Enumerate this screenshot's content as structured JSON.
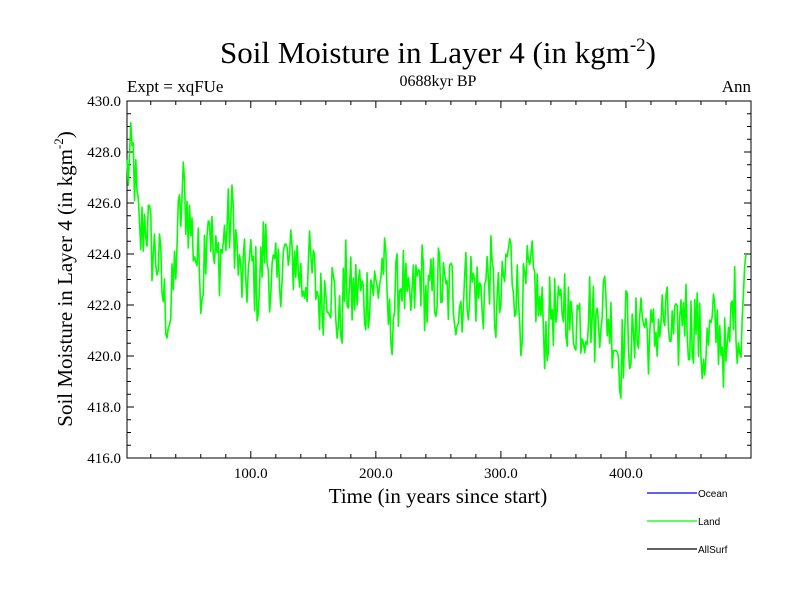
{
  "header": {
    "title_main": "Soil Moisture in Layer 4 (in kgm",
    "title_sup": "-2",
    "title_close": ")",
    "left_label": "Expt = xqFUe",
    "center_label": "0688kyr BP",
    "right_label": "Ann"
  },
  "chart_data": {
    "type": "line",
    "title": "Soil Moisture in Layer 4 (in kgm-2)",
    "xlabel": "Time (in years since start)",
    "ylabel": "Soil Moisture in Layer 4 (in kgm-2)",
    "ylabel_main": "Soil Moisture in Layer 4 (in kgm",
    "ylabel_sup": "-2",
    "ylabel_close": ")",
    "xlim": [
      1,
      500
    ],
    "ylim": [
      416.0,
      430.0
    ],
    "x_ticks": [
      {
        "value": 100,
        "label": "100.0"
      },
      {
        "value": 200,
        "label": "200.0"
      },
      {
        "value": 300,
        "label": "300.0"
      },
      {
        "value": 400,
        "label": "400.0"
      }
    ],
    "y_ticks": [
      {
        "value": 416,
        "label": "416.0"
      },
      {
        "value": 418,
        "label": "418.0"
      },
      {
        "value": 420,
        "label": "420.0"
      },
      {
        "value": 422,
        "label": "422.0"
      },
      {
        "value": 424,
        "label": "424.0"
      },
      {
        "value": 426,
        "label": "426.0"
      },
      {
        "value": 428,
        "label": "428.0"
      },
      {
        "value": 430,
        "label": "430.0"
      }
    ],
    "legend": [
      {
        "name": "Ocean",
        "color": "#0000ff"
      },
      {
        "name": "Land",
        "color": "#00ff00"
      },
      {
        "name": "AllSurf",
        "color": "#000000"
      }
    ],
    "series": [
      {
        "name": "Land",
        "color": "#00ff00",
        "x_start": 1,
        "x_step": 5,
        "values": [
          427.2,
          427.8,
          424.5,
          425.5,
          424.2,
          423.8,
          422.0,
          421.5,
          424.5,
          426.5,
          425.3,
          424.0,
          423.0,
          426.0,
          423.5,
          424.0,
          425.0,
          425.5,
          423.0,
          423.0,
          423.5,
          422.5,
          424.5,
          423.0,
          422.8,
          424.0,
          423.5,
          424.0,
          422.8,
          423.5,
          423.0,
          422.0,
          423.0,
          422.5,
          421.0,
          423.0,
          422.2,
          422.8,
          422.0,
          423.0,
          422.5,
          423.8,
          421.0,
          422.3,
          423.2,
          421.5,
          422.5,
          423.3,
          422.0,
          422.6,
          423.0,
          422.2,
          422.7,
          421.8,
          422.7,
          423.0,
          422.5,
          422.3,
          423.5,
          421.7,
          422.2,
          424.2,
          423.0,
          421.6,
          422.8,
          423.0,
          421.8,
          420.8,
          422.0,
          421.2,
          422.5,
          421.0,
          421.7,
          421.3,
          422.0,
          421.0,
          422.5,
          421.5,
          420.8,
          419.8,
          421.5,
          420.0,
          422.0,
          421.0,
          420.5,
          421.3,
          421.5,
          420.8,
          420.5,
          422.2,
          421.0,
          421.5,
          420.0,
          420.5,
          421.2,
          420.8,
          419.5,
          422.5,
          420.5,
          424.0
        ]
      }
    ]
  }
}
